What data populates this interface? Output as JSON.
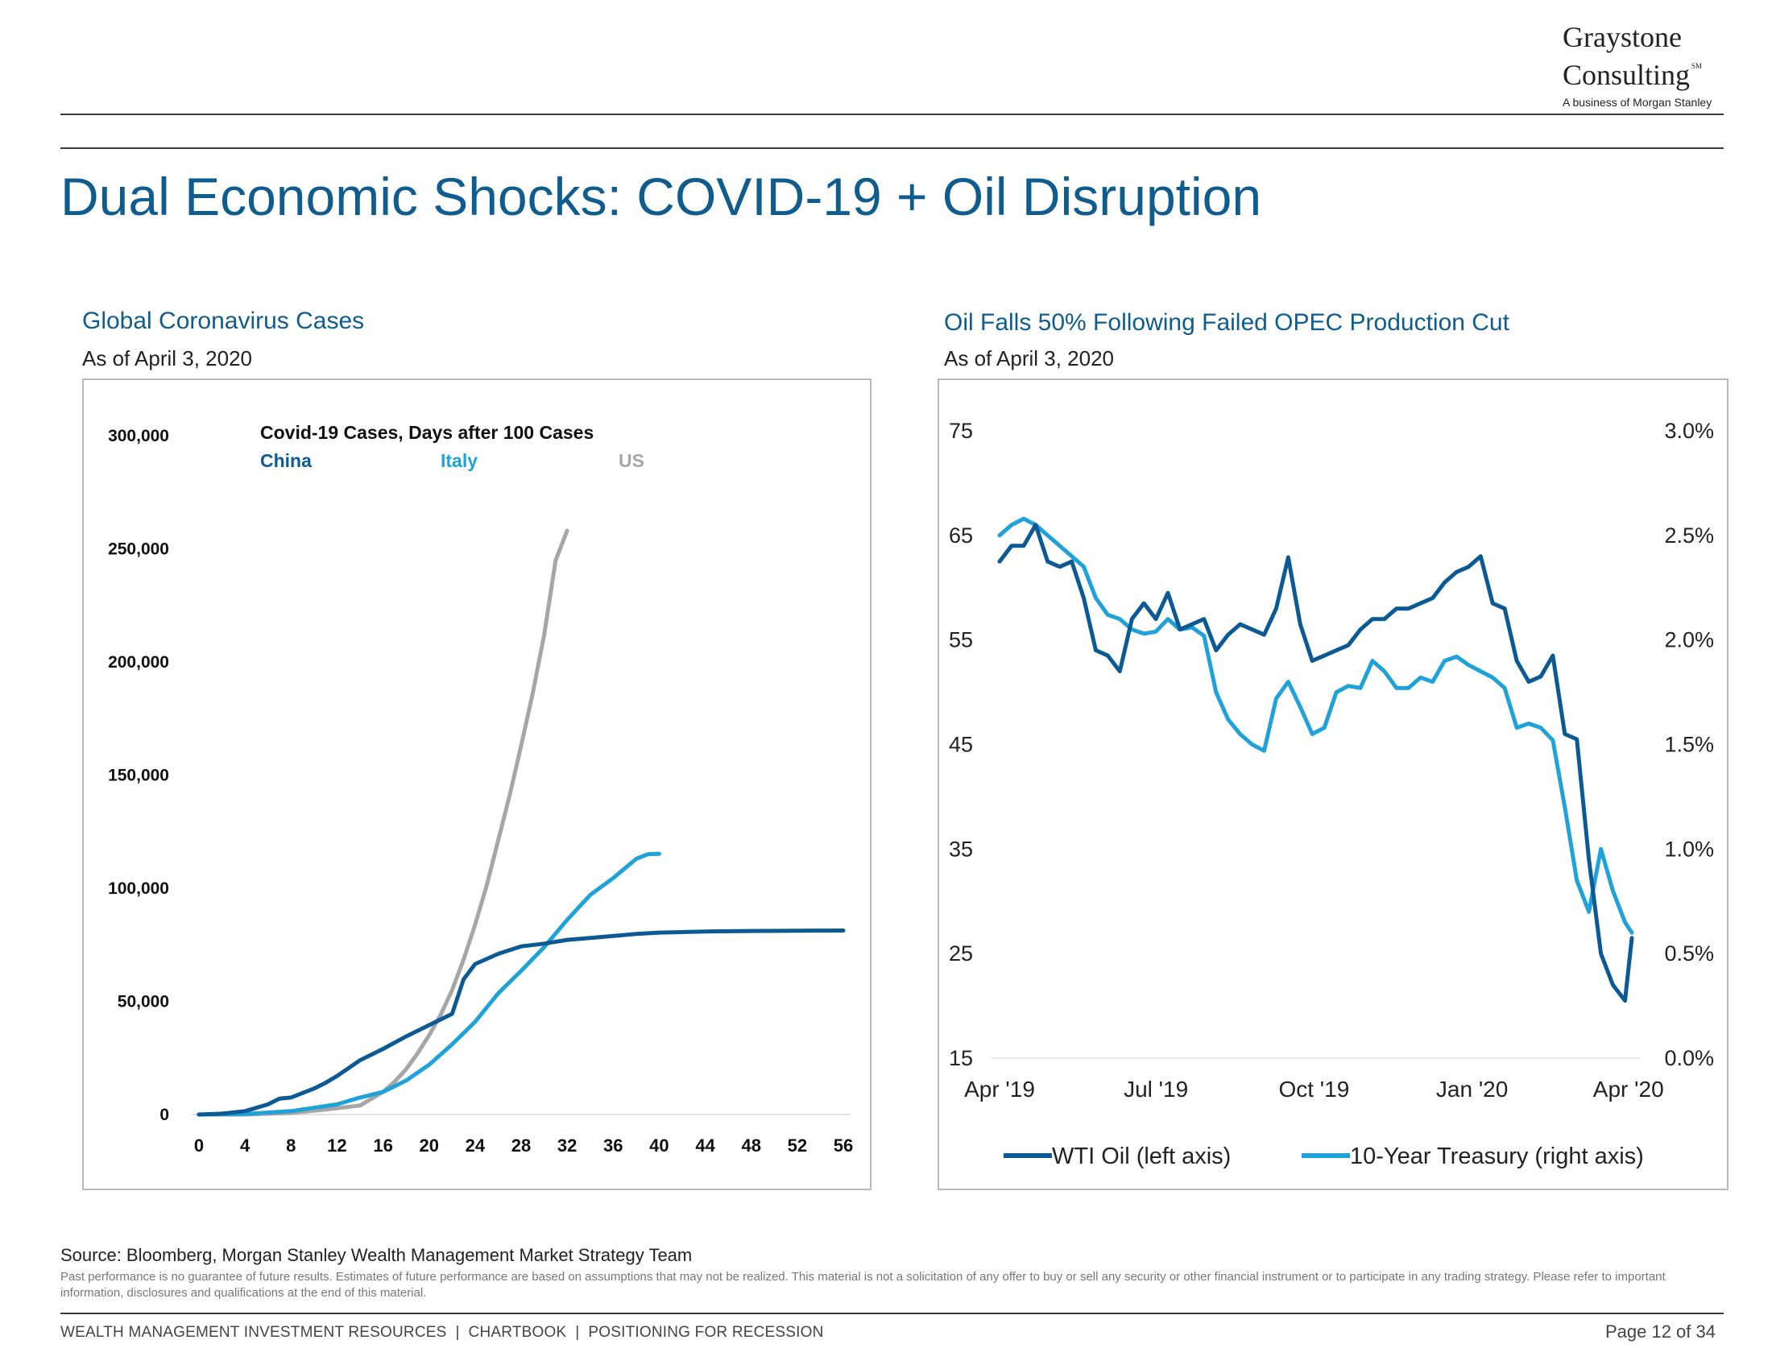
{
  "logo": {
    "line1": "Graystone",
    "line2": "Consulting",
    "mark": "SM",
    "tagline": "A business of Morgan Stanley"
  },
  "page_title": "Dual Economic Shocks: COVID-19 + Oil Disruption",
  "left_panel": {
    "title": "Global Coronavirus Cases",
    "subtitle": "As of April 3, 2020"
  },
  "right_panel": {
    "title": "Oil Falls 50% Following Failed OPEC Production Cut",
    "subtitle": "As of April 3, 2020"
  },
  "source": "Source: Bloomberg, Morgan Stanley Wealth Management Market Strategy Team",
  "disclaimer": "Past performance is no guarantee of future results. Estimates of future performance are based on assumptions that may not be realized. This material is not a solicitation of any offer to buy or sell any security or other financial instrument or to participate in any trading strategy. Please refer to important information, disclosures and qualifications at the end of this material.",
  "footer": {
    "left": "WEALTH MANAGEMENT INVESTMENT RESOURCES  |  CHARTBOOK  |  POSITIONING FOR RECESSION",
    "page": "Page 12 of 34"
  },
  "colors": {
    "title": "#0f5c8f",
    "china": "#0b5a96",
    "italy": "#1fa2d9",
    "us": "#a6a6a6",
    "wti": "#0b5a96",
    "treasury": "#1fa2d9"
  },
  "chart_data": [
    {
      "type": "line",
      "title": "Covid-19 Cases, Days after 100 Cases",
      "xlabel": "",
      "ylabel": "",
      "xlim": [
        0,
        56
      ],
      "ylim": [
        0,
        300000
      ],
      "x_ticks": [
        0,
        4,
        8,
        12,
        16,
        20,
        24,
        28,
        32,
        36,
        40,
        44,
        48,
        52,
        56
      ],
      "y_ticks": [
        0,
        50000,
        100000,
        150000,
        200000,
        250000,
        300000
      ],
      "x_tick_labels": [
        "0",
        "4",
        "8",
        "12",
        "16",
        "20",
        "24",
        "28",
        "32",
        "36",
        "40",
        "44",
        "48",
        "52",
        "56"
      ],
      "y_tick_labels": [
        "0",
        "50,000",
        "100,000",
        "150,000",
        "200,000",
        "250,000",
        "300,000"
      ],
      "grid": false,
      "legend": "top",
      "series": [
        {
          "name": "China",
          "x": [
            0,
            2,
            4,
            6,
            7,
            8,
            10,
            11,
            12,
            13,
            14,
            16,
            18,
            20,
            21,
            22,
            23,
            24,
            26,
            28,
            30,
            32,
            34,
            36,
            38,
            40,
            44,
            48,
            52,
            56
          ],
          "y": [
            0,
            400,
            1500,
            4500,
            7000,
            7500,
            11500,
            14000,
            17000,
            20500,
            24000,
            29000,
            34500,
            39500,
            42000,
            44500,
            59800,
            66500,
            71000,
            74300,
            75500,
            77200,
            78000,
            78900,
            79800,
            80400,
            80900,
            81100,
            81200,
            81300
          ]
        },
        {
          "name": "Italy",
          "x": [
            0,
            4,
            8,
            12,
            14,
            16,
            18,
            20,
            22,
            24,
            26,
            28,
            30,
            32,
            34,
            36,
            38,
            39,
            40
          ],
          "y": [
            0,
            200,
            1500,
            4500,
            7500,
            10000,
            15000,
            22000,
            31000,
            41000,
            53500,
            63500,
            74000,
            86000,
            97000,
            104500,
            113000,
            115000,
            115200
          ]
        },
        {
          "name": "US",
          "x": [
            0,
            4,
            8,
            10,
            12,
            14,
            16,
            17,
            18,
            19,
            20,
            21,
            22,
            23,
            24,
            25,
            26,
            27,
            28,
            29,
            30,
            31,
            32
          ],
          "y": [
            0,
            0,
            700,
            1700,
            2800,
            4000,
            10000,
            14500,
            20000,
            27000,
            35000,
            44000,
            55000,
            68500,
            84000,
            101000,
            121000,
            141000,
            163000,
            186000,
            212000,
            245000,
            258000
          ]
        }
      ]
    },
    {
      "type": "line",
      "title": "",
      "xlabel": "",
      "ylabel_left": "",
      "ylabel_right": "",
      "xlim": [
        "2019-04-01",
        "2020-04-03"
      ],
      "ylim_left": [
        15,
        75
      ],
      "ylim_right": [
        0.0,
        3.0
      ],
      "x_tick_labels": [
        "Apr '19",
        "Jul '19",
        "Oct '19",
        "Jan '20",
        "Apr '20"
      ],
      "x_tick_dates": [
        "2019-04-01",
        "2019-07-01",
        "2019-10-01",
        "2020-01-01",
        "2020-04-01"
      ],
      "y_left_ticks": [
        15,
        25,
        35,
        45,
        55,
        65,
        75
      ],
      "y_right_ticks": [
        0.0,
        0.5,
        1.0,
        1.5,
        2.0,
        2.5,
        3.0
      ],
      "y_right_tick_labels": [
        "0.0%",
        "0.5%",
        "1.0%",
        "1.5%",
        "2.0%",
        "2.5%",
        "3.0%"
      ],
      "grid": false,
      "legend": "bottom",
      "series": [
        {
          "name": "WTI Oil (left axis)",
          "axis": "left",
          "x": [
            "2019-04-01",
            "2019-04-08",
            "2019-04-15",
            "2019-04-22",
            "2019-04-29",
            "2019-05-06",
            "2019-05-13",
            "2019-05-20",
            "2019-05-27",
            "2019-06-03",
            "2019-06-10",
            "2019-06-17",
            "2019-06-24",
            "2019-07-01",
            "2019-07-08",
            "2019-07-15",
            "2019-07-22",
            "2019-07-29",
            "2019-08-05",
            "2019-08-12",
            "2019-08-19",
            "2019-08-26",
            "2019-09-02",
            "2019-09-09",
            "2019-09-16",
            "2019-09-23",
            "2019-09-30",
            "2019-10-07",
            "2019-10-14",
            "2019-10-21",
            "2019-10-28",
            "2019-11-04",
            "2019-11-11",
            "2019-11-18",
            "2019-11-25",
            "2019-12-02",
            "2019-12-09",
            "2019-12-16",
            "2019-12-23",
            "2019-12-30",
            "2020-01-06",
            "2020-01-13",
            "2020-01-20",
            "2020-01-27",
            "2020-02-03",
            "2020-02-10",
            "2020-02-17",
            "2020-02-24",
            "2020-03-02",
            "2020-03-09",
            "2020-03-16",
            "2020-03-23",
            "2020-03-30",
            "2020-04-03"
          ],
          "y": [
            62.5,
            64.0,
            64.0,
            66.0,
            62.5,
            62.0,
            62.5,
            59.0,
            54.0,
            53.5,
            52.0,
            57.0,
            58.5,
            57.0,
            59.5,
            56.0,
            56.5,
            57.0,
            54.0,
            55.5,
            56.5,
            56.0,
            55.5,
            58.0,
            62.9,
            56.5,
            53.0,
            53.5,
            54.0,
            54.5,
            56.0,
            57.0,
            57.0,
            58.0,
            58.0,
            58.5,
            59.0,
            60.5,
            61.5,
            62.0,
            63.0,
            58.5,
            58.0,
            53.0,
            51.0,
            51.5,
            53.5,
            46.0,
            45.5,
            34.0,
            25.0,
            22.0,
            20.5,
            26.5
          ]
        },
        {
          "name": "10-Year Treasury (right axis)",
          "axis": "right",
          "x": [
            "2019-04-01",
            "2019-04-08",
            "2019-04-15",
            "2019-04-22",
            "2019-04-29",
            "2019-05-06",
            "2019-05-13",
            "2019-05-20",
            "2019-05-27",
            "2019-06-03",
            "2019-06-10",
            "2019-06-17",
            "2019-06-24",
            "2019-07-01",
            "2019-07-08",
            "2019-07-15",
            "2019-07-22",
            "2019-07-29",
            "2019-08-05",
            "2019-08-12",
            "2019-08-19",
            "2019-08-26",
            "2019-09-02",
            "2019-09-09",
            "2019-09-16",
            "2019-09-23",
            "2019-09-30",
            "2019-10-07",
            "2019-10-14",
            "2019-10-21",
            "2019-10-28",
            "2019-11-04",
            "2019-11-11",
            "2019-11-18",
            "2019-11-25",
            "2019-12-02",
            "2019-12-09",
            "2019-12-16",
            "2019-12-23",
            "2019-12-30",
            "2020-01-06",
            "2020-01-13",
            "2020-01-20",
            "2020-01-27",
            "2020-02-03",
            "2020-02-10",
            "2020-02-17",
            "2020-02-24",
            "2020-03-02",
            "2020-03-09",
            "2020-03-16",
            "2020-03-23",
            "2020-03-30",
            "2020-04-03"
          ],
          "y": [
            2.5,
            2.55,
            2.58,
            2.55,
            2.5,
            2.45,
            2.4,
            2.35,
            2.2,
            2.12,
            2.1,
            2.05,
            2.03,
            2.04,
            2.1,
            2.05,
            2.06,
            2.02,
            1.75,
            1.62,
            1.55,
            1.5,
            1.47,
            1.72,
            1.8,
            1.68,
            1.55,
            1.58,
            1.75,
            1.78,
            1.77,
            1.9,
            1.85,
            1.77,
            1.77,
            1.82,
            1.8,
            1.9,
            1.92,
            1.88,
            1.85,
            1.82,
            1.77,
            1.58,
            1.6,
            1.58,
            1.52,
            1.2,
            0.85,
            0.7,
            1.0,
            0.8,
            0.65,
            0.6
          ]
        }
      ]
    }
  ]
}
